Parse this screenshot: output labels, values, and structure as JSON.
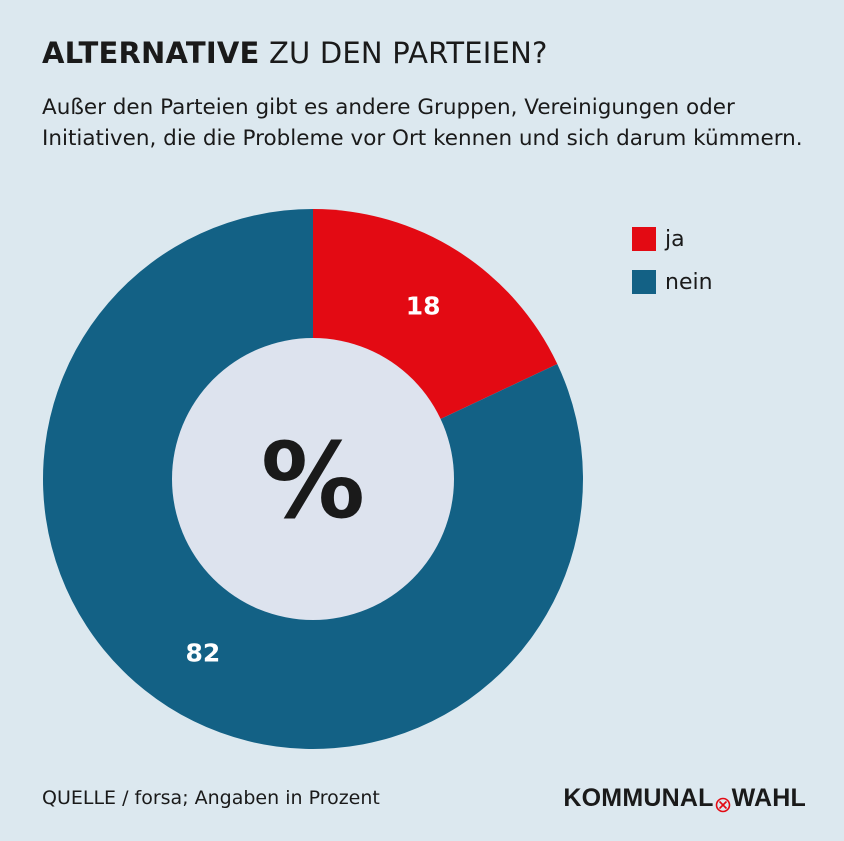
{
  "title_bold": "ALTERNATIVE",
  "title_rest": "ZU DEN PARTEIEN?",
  "subtitle": "Außer den Parteien gibt es andere Gruppen, Vereinigungen oder Initiativen, die die Probleme vor Ort kennen und sich darum kümmern.",
  "center_label": "%",
  "source": "QUELLE / forsa; Angaben in Prozent",
  "brand": {
    "left": "KOMMUNAL",
    "right": "WAHL"
  },
  "colors": {
    "background": "#dce8ef",
    "inner": "#dde3ee",
    "ja": "#e30a13",
    "nein": "#136185"
  },
  "chart_data": {
    "type": "pie",
    "style": "donut",
    "title": "ALTERNATIVE ZU DEN PARTEIEN?",
    "unit": "%",
    "categories": [
      "ja",
      "nein"
    ],
    "values": [
      18,
      82
    ],
    "legend_position": "top-right"
  }
}
